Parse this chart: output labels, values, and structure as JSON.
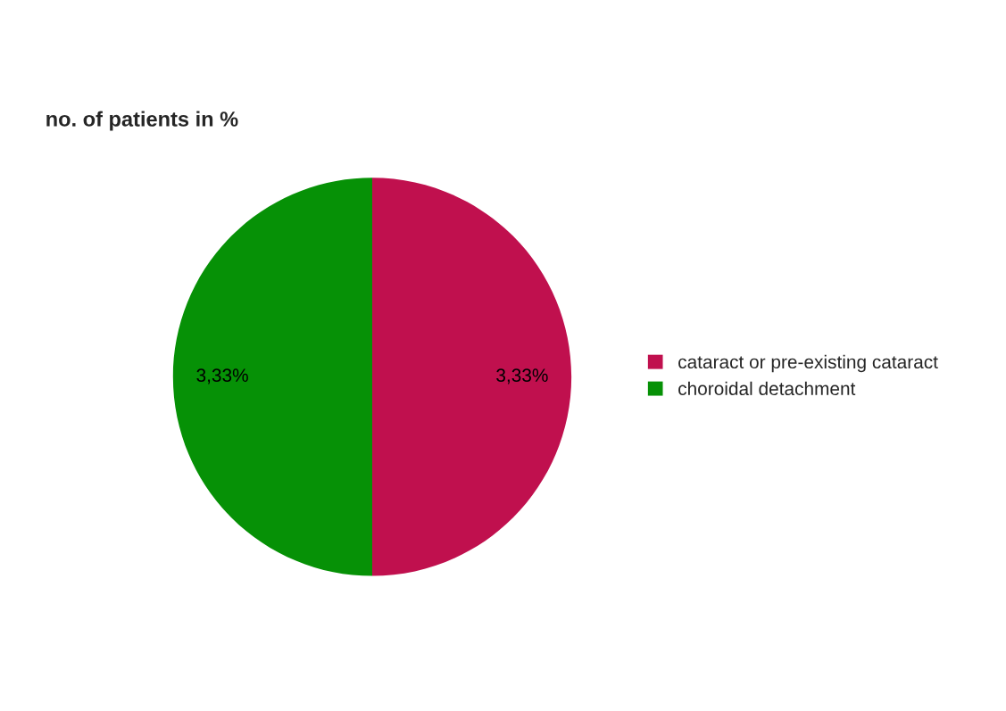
{
  "chart_data": {
    "type": "pie",
    "title": "no. of patients in %",
    "categories": [
      "cataract or pre-existing cataract",
      "choroidal detachment"
    ],
    "values": [
      3.33,
      3.33
    ],
    "value_labels": [
      "3,33%",
      "3,33%"
    ],
    "colors": [
      "#c0104e",
      "#069106"
    ],
    "legend": "right"
  }
}
